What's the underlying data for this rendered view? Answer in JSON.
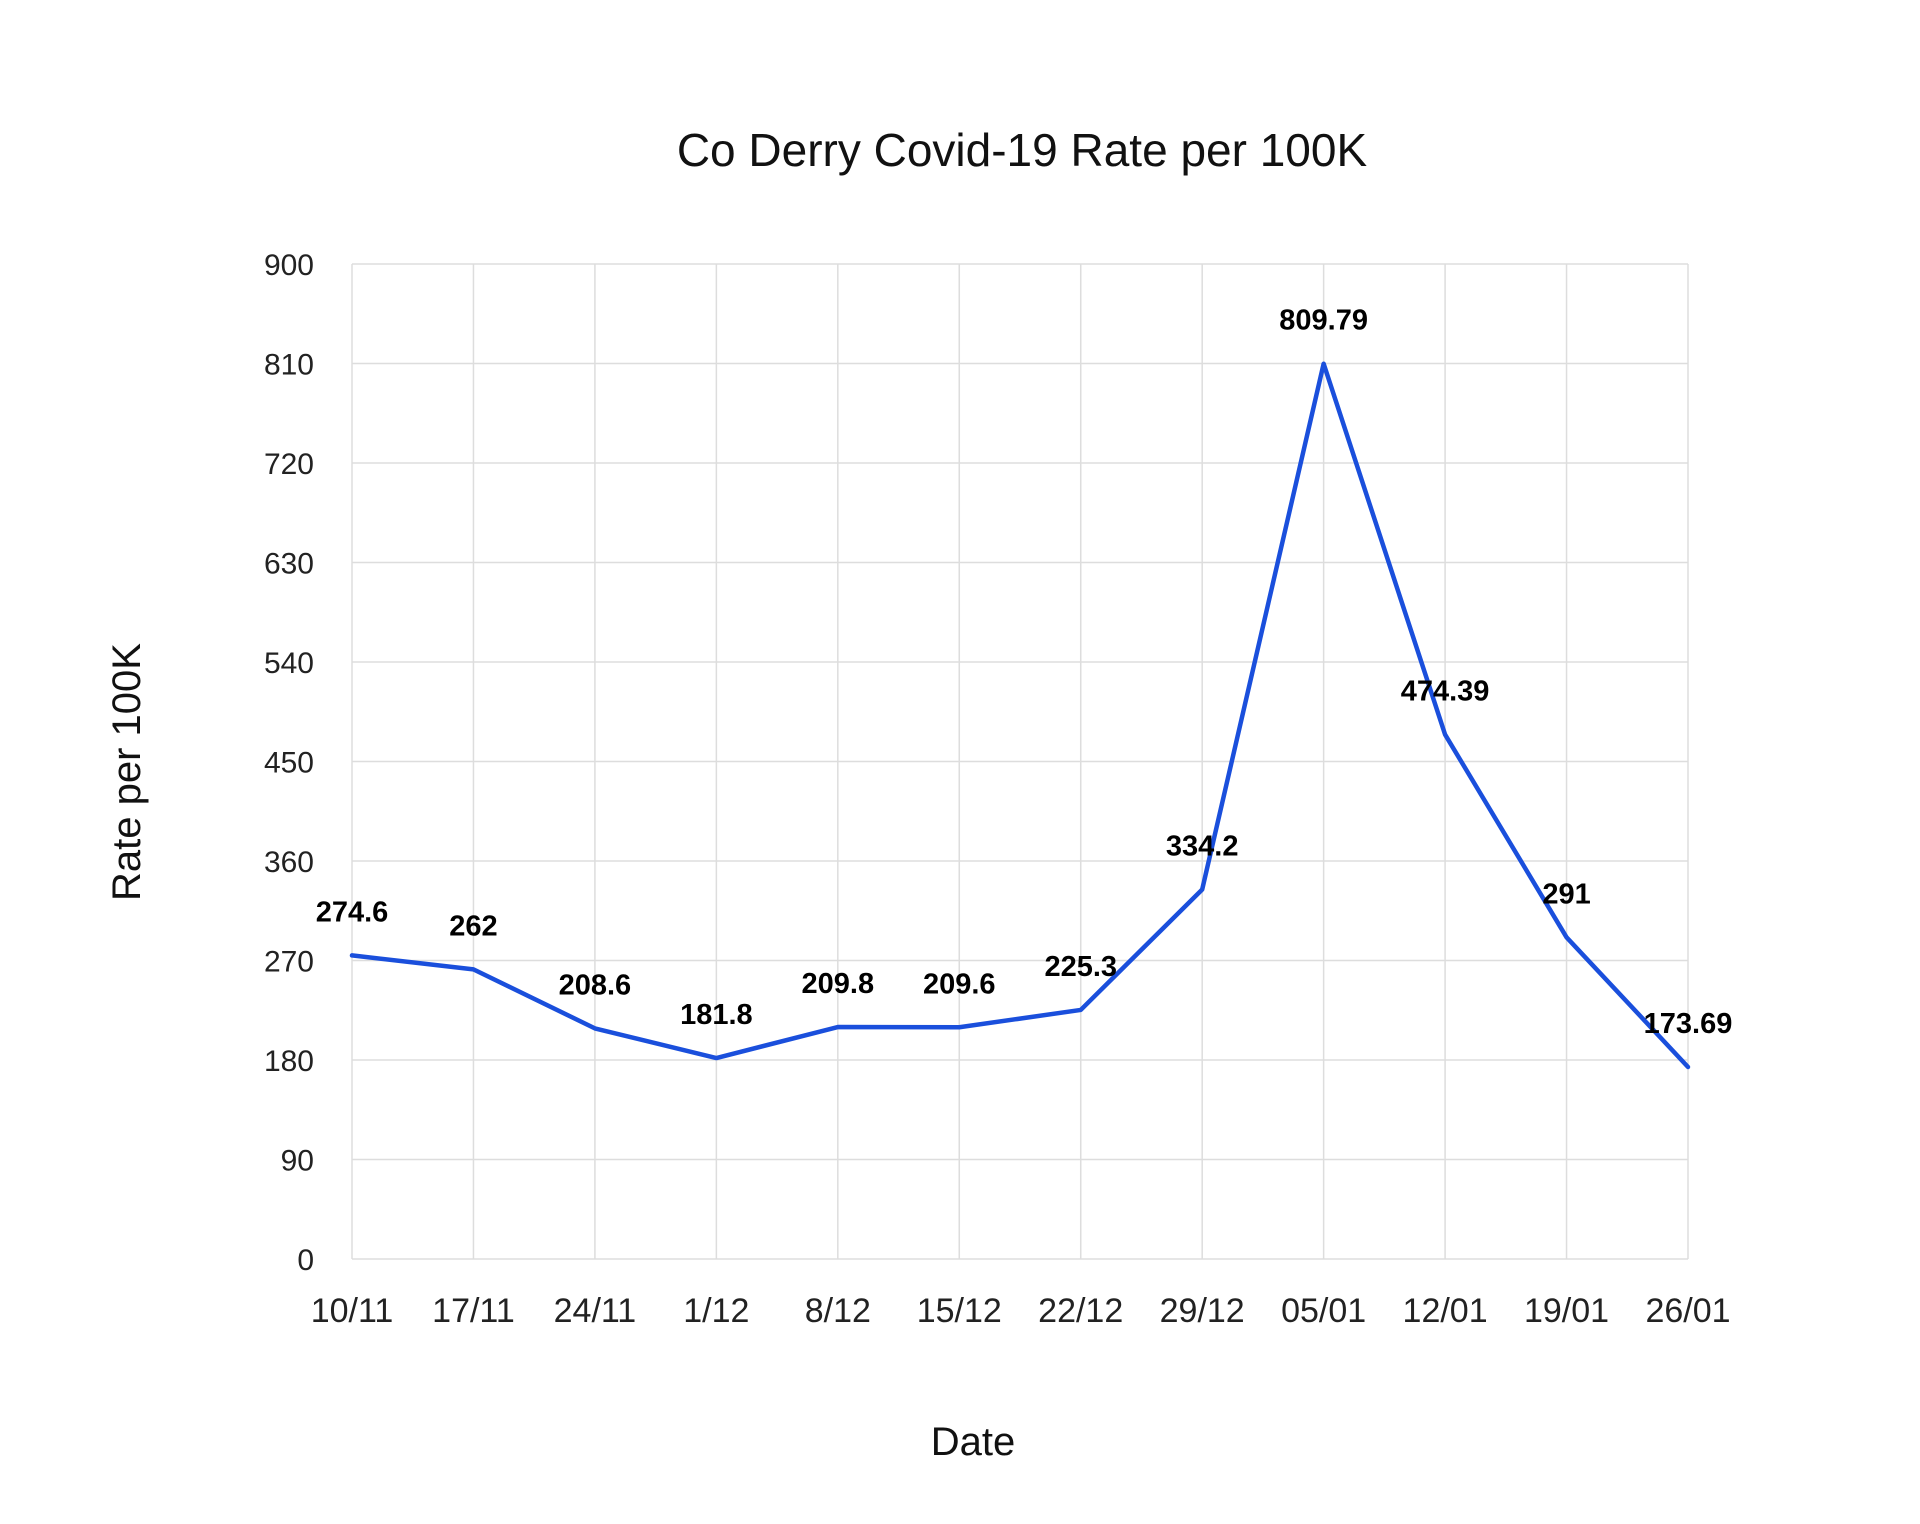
{
  "chart_data": {
    "type": "line",
    "title": "Co Derry Covid-19 Rate per 100K",
    "xlabel": "Date",
    "ylabel": "Rate per 100K",
    "categories": [
      "10/11",
      "17/11",
      "24/11",
      "1/12",
      "8/12",
      "15/12",
      "22/12",
      "29/12",
      "05/01",
      "12/01",
      "19/01",
      "26/01"
    ],
    "series": [
      {
        "values": [
          274.6,
          262,
          208.6,
          181.8,
          209.8,
          209.6,
          225.3,
          334.2,
          809.79,
          474.39,
          291,
          173.69
        ],
        "labels": [
          "274.6",
          "262",
          "208.6",
          "181.8",
          "209.8",
          "209.6",
          "225.3",
          "334.2",
          "809.79",
          "474.39",
          "291",
          "173.69"
        ],
        "color": "#1a4fdc"
      }
    ],
    "ylim": [
      0,
      900
    ],
    "yticks": [
      "0",
      "90",
      "180",
      "270",
      "360",
      "450",
      "540",
      "630",
      "720",
      "810",
      "900"
    ],
    "grid": true,
    "legend": "none"
  }
}
